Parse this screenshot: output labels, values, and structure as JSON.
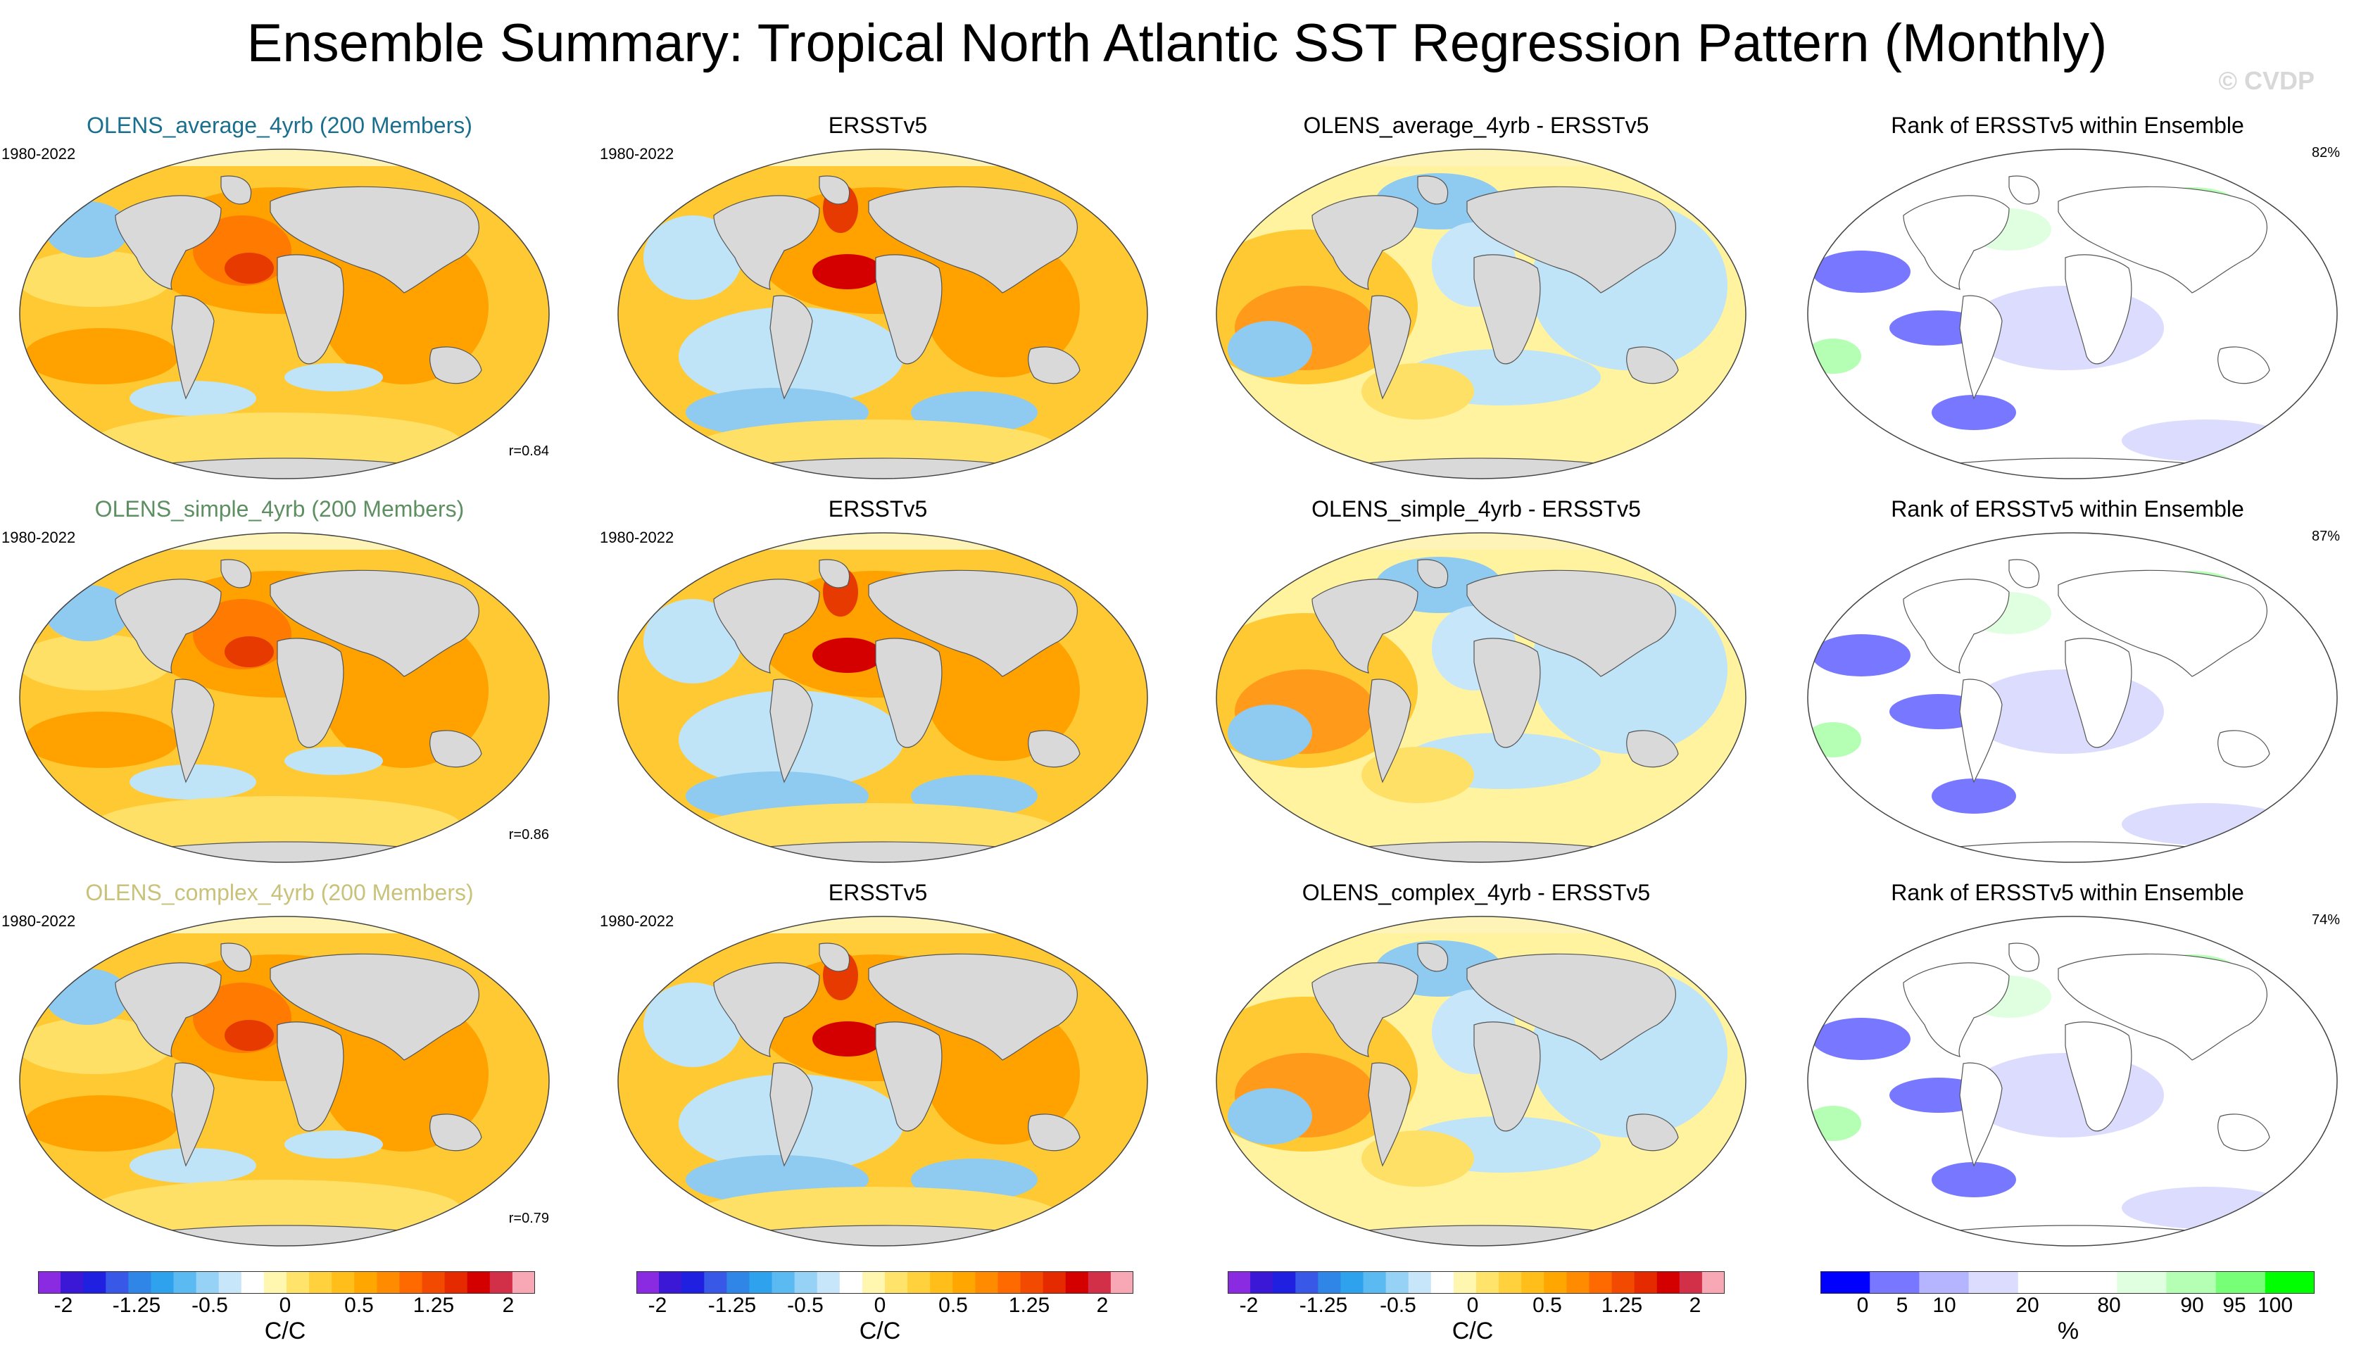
{
  "title": "Ensemble Summary: Tropical North Atlantic SST Regression Pattern (Monthly)",
  "watermark": "© CVDP",
  "rows": [
    {
      "model": {
        "title": "OLENS_average_4yrb (200 Members)",
        "title_color": "#1a6f8f",
        "period": "1980-2022",
        "corr": "r=0.84"
      },
      "obs": {
        "title": "ERSSTv5",
        "period": "1980-2022"
      },
      "diff": {
        "title": "OLENS_average_4yrb - ERSSTv5"
      },
      "rank": {
        "title": "Rank of ERSSTv5 within Ensemble",
        "percent": "82%"
      }
    },
    {
      "model": {
        "title": "OLENS_simple_4yrb (200 Members)",
        "title_color": "#5e8f62",
        "period": "1980-2022",
        "corr": "r=0.86"
      },
      "obs": {
        "title": "ERSSTv5",
        "period": "1980-2022"
      },
      "diff": {
        "title": "OLENS_simple_4yrb - ERSSTv5"
      },
      "rank": {
        "title": "Rank of ERSSTv5 within Ensemble",
        "percent": "87%"
      }
    },
    {
      "model": {
        "title": "OLENS_complex_4yrb (200 Members)",
        "title_color": "#c9c27a",
        "period": "1980-2022",
        "corr": "r=0.79"
      },
      "obs": {
        "title": "ERSSTv5",
        "period": "1980-2022"
      },
      "diff": {
        "title": "OLENS_complex_4yrb - ERSSTv5"
      },
      "rank": {
        "title": "Rank of ERSSTv5 within Ensemble",
        "percent": "74%"
      }
    }
  ],
  "colorbars": {
    "sst": {
      "ticks": [
        "-2",
        "-1.25",
        "-0.5",
        "0",
        "0.5",
        "1.25",
        "2"
      ],
      "unit": "C/C",
      "colors": [
        "#8a2be2",
        "#3a18d6",
        "#2020e0",
        "#3858e8",
        "#2f86e6",
        "#2fa2ee",
        "#5cbaf2",
        "#96d2f6",
        "#c8e6fa",
        "#ffffff",
        "#fff6b0",
        "#ffe36a",
        "#ffd13c",
        "#ffbe1a",
        "#ffa600",
        "#ff8c00",
        "#ff6a00",
        "#f24a00",
        "#e52a00",
        "#d40000",
        "#d23048",
        "#f8a8b4"
      ]
    },
    "rank": {
      "ticks": [
        "0",
        "5",
        "10",
        "20",
        "80",
        "90",
        "95",
        "100"
      ],
      "unit": "%",
      "colors": [
        "#0000ff",
        "#7777ff",
        "#b4b4ff",
        "#dcdcff",
        "#ffffff",
        "#ffffff",
        "#e0ffe0",
        "#b4ffb4",
        "#78ff78",
        "#00ff00"
      ]
    }
  }
}
